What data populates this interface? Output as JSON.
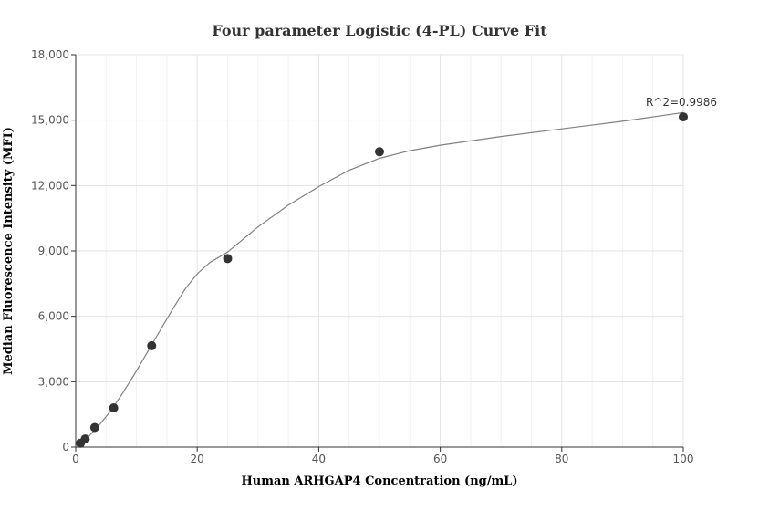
{
  "chart_data": {
    "type": "scatter",
    "title": "Four parameter Logistic (4-PL) Curve Fit",
    "xlabel": "Human ARHGAP4 Concentration (ng/mL)",
    "ylabel": "Median Fluorescence Intensity (MFI)",
    "xlim": [
      0,
      100
    ],
    "ylim": [
      0,
      18000
    ],
    "xticks": [
      0,
      20,
      40,
      60,
      80,
      100
    ],
    "xtick_labels": [
      "0",
      "20",
      "40",
      "60",
      "80",
      "100"
    ],
    "yticks": [
      0,
      3000,
      6000,
      9000,
      12000,
      15000,
      18000
    ],
    "ytick_labels": [
      "0",
      "3,000",
      "6,000",
      "9,000",
      "12,000",
      "15,000",
      "18,000"
    ],
    "grid": true,
    "series": [
      {
        "points": [
          {
            "x": 0.78,
            "y": 180
          },
          {
            "x": 1.56,
            "y": 370
          },
          {
            "x": 3.13,
            "y": 900
          },
          {
            "x": 6.25,
            "y": 1800
          },
          {
            "x": 12.5,
            "y": 4650
          },
          {
            "x": 25,
            "y": 8650
          },
          {
            "x": 50,
            "y": 13550
          },
          {
            "x": 100,
            "y": 15150
          }
        ]
      }
    ],
    "fit_curve": {
      "points": [
        {
          "x": 0,
          "y": 50
        },
        {
          "x": 2,
          "y": 450
        },
        {
          "x": 4,
          "y": 1050
        },
        {
          "x": 6,
          "y": 1750
        },
        {
          "x": 8,
          "y": 2600
        },
        {
          "x": 10,
          "y": 3500
        },
        {
          "x": 12,
          "y": 4450
        },
        {
          "x": 14,
          "y": 5400
        },
        {
          "x": 16,
          "y": 6350
        },
        {
          "x": 18,
          "y": 7250
        },
        {
          "x": 20,
          "y": 7950
        },
        {
          "x": 22,
          "y": 8450
        },
        {
          "x": 25,
          "y": 8950
        },
        {
          "x": 30,
          "y": 10100
        },
        {
          "x": 35,
          "y": 11100
        },
        {
          "x": 40,
          "y": 11950
        },
        {
          "x": 45,
          "y": 12700
        },
        {
          "x": 50,
          "y": 13250
        },
        {
          "x": 55,
          "y": 13600
        },
        {
          "x": 60,
          "y": 13850
        },
        {
          "x": 70,
          "y": 14250
        },
        {
          "x": 80,
          "y": 14600
        },
        {
          "x": 90,
          "y": 14950
        },
        {
          "x": 100,
          "y": 15350
        }
      ]
    },
    "annotation": {
      "text": "R^2=0.9986",
      "x": 100,
      "y": 15150
    },
    "colors": {
      "points": "#333333",
      "curve": "#808080",
      "grid": "#e3e3e3"
    }
  }
}
